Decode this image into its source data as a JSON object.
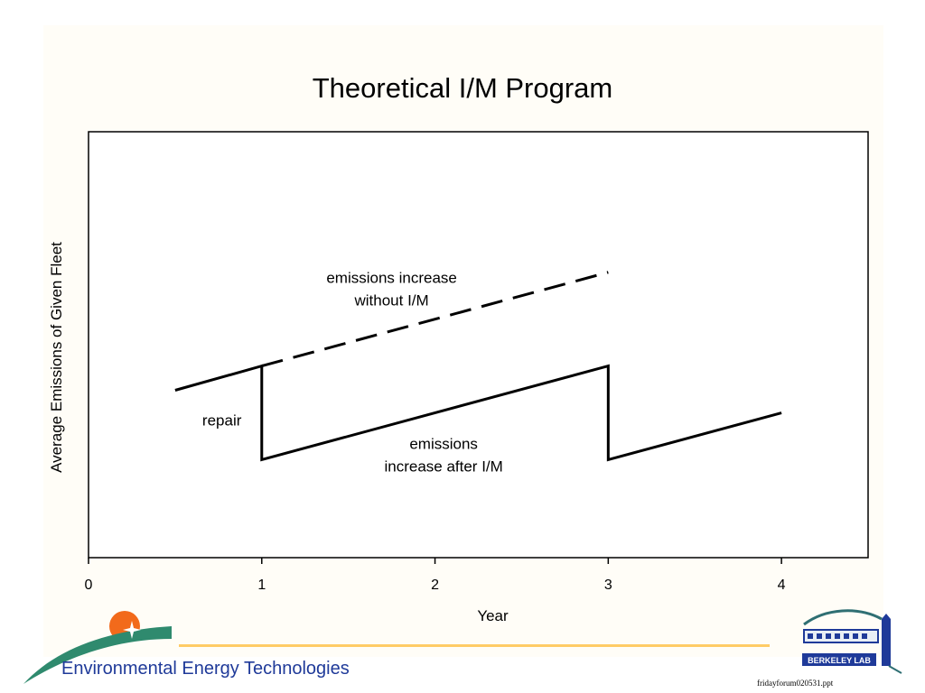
{
  "slide": {
    "title": "Theoretical I/M Program",
    "footer_text": "Environmental Energy Technologies",
    "file_label": "fridayforum020531.ppt",
    "right_logo_text": "BERKELEY LAB"
  },
  "colors": {
    "footer_text": "#1f3a99",
    "footer_line": "#ffcc66",
    "logo_sun": "#f26a1b",
    "logo_swoosh": "#2f8a6e"
  },
  "chart_data": {
    "type": "line",
    "title": "",
    "xlabel": "Year",
    "ylabel": "Average Emissions of Given Fleet",
    "xlim": [
      0,
      4.5
    ],
    "ylim": [
      0,
      10
    ],
    "x_ticks": [
      0,
      1,
      2,
      3,
      4
    ],
    "y_ticks": [],
    "grid": false,
    "series": [
      {
        "style": "solid",
        "points": [
          [
            0.5,
            3.93
          ],
          [
            1.0,
            4.5
          ],
          [
            1.0,
            2.3
          ],
          [
            3.0,
            4.5
          ],
          [
            3.0,
            2.3
          ],
          [
            4.0,
            3.4
          ]
        ]
      },
      {
        "style": "dashed",
        "points": [
          [
            1.0,
            4.5
          ],
          [
            3.0,
            6.7
          ]
        ]
      }
    ],
    "annotations": [
      {
        "lines": [
          "emissions increase",
          "without I/M"
        ],
        "x": 1.75,
        "y": 6.45
      },
      {
        "lines": [
          "repair"
        ],
        "x": 0.77,
        "y": 3.1
      },
      {
        "lines": [
          "emissions",
          "increase after I/M"
        ],
        "x": 2.05,
        "y": 2.55
      }
    ]
  }
}
